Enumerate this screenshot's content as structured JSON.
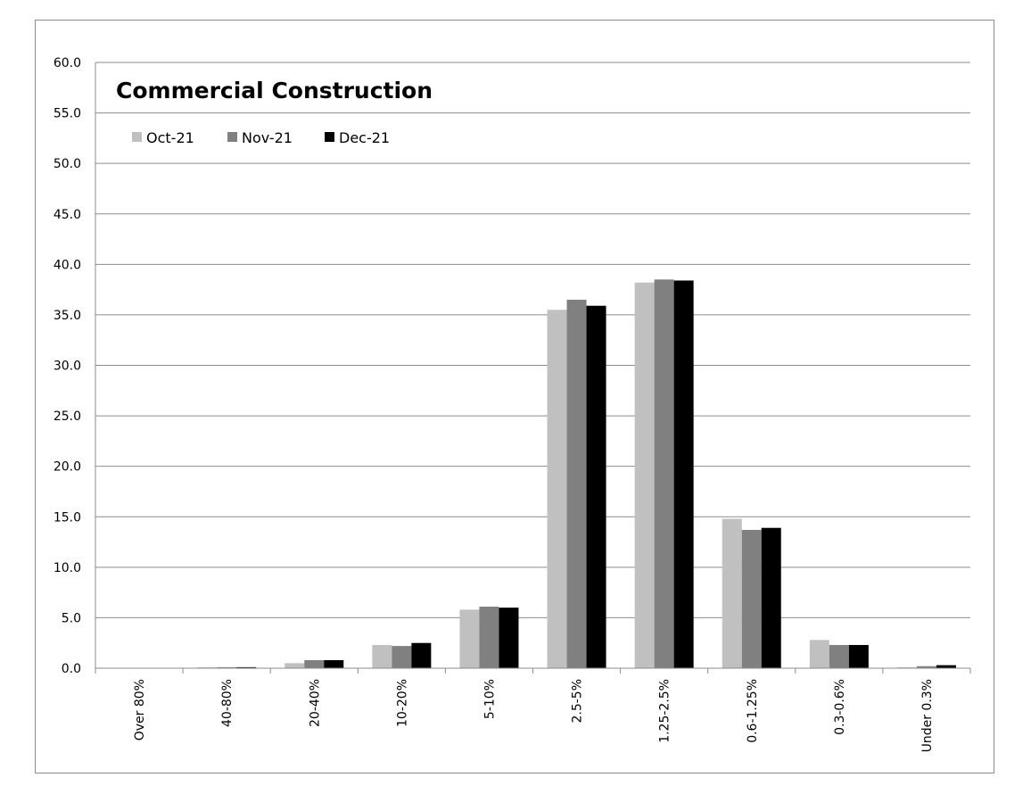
{
  "chart_data": {
    "type": "bar",
    "title": "Commercial Construction",
    "xlabel": "",
    "ylabel": "",
    "ylim": [
      0,
      60
    ],
    "y_ticks": [
      "0.0",
      "5.0",
      "10.0",
      "15.0",
      "20.0",
      "25.0",
      "30.0",
      "35.0",
      "40.0",
      "45.0",
      "50.0",
      "55.0",
      "60.0"
    ],
    "categories": [
      "Over 80%",
      "40-80%",
      "20-40%",
      "10-20%",
      "5-10%",
      "2.5-5%",
      "1.25-2.5%",
      "0.6-1.25%",
      "0.3-0.6%",
      "Under 0.3%"
    ],
    "series": [
      {
        "name": "Oct-21",
        "color": "#c0c0c0",
        "values": [
          0.0,
          0.1,
          0.5,
          2.3,
          5.8,
          35.5,
          38.2,
          14.8,
          2.8,
          0.1
        ]
      },
      {
        "name": "Nov-21",
        "color": "#808080",
        "values": [
          0.0,
          0.1,
          0.8,
          2.2,
          6.1,
          36.5,
          38.5,
          13.7,
          2.3,
          0.2
        ]
      },
      {
        "name": "Dec-21",
        "color": "#000000",
        "values": [
          0.0,
          0.1,
          0.8,
          2.5,
          6.0,
          35.9,
          38.4,
          13.9,
          2.3,
          0.3
        ]
      }
    ],
    "grid": true,
    "legend_position": "top-left"
  }
}
